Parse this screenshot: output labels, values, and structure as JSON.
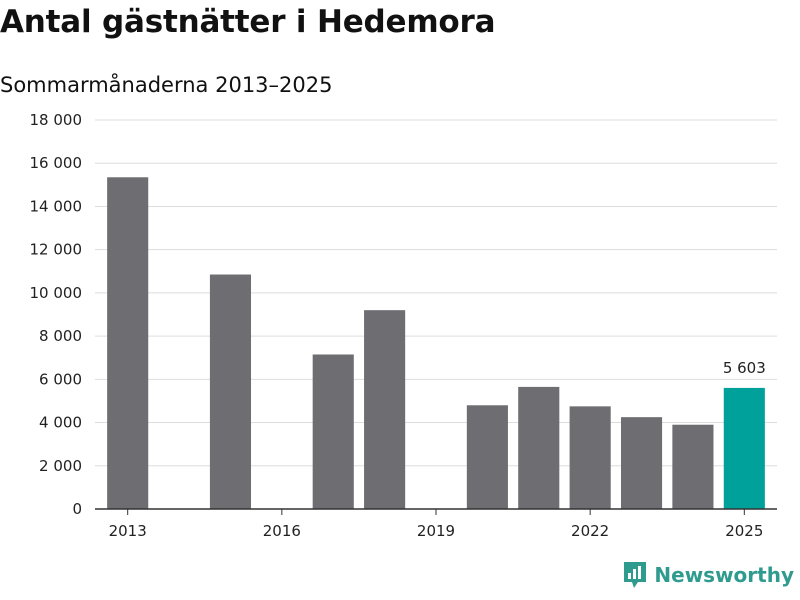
{
  "title": "Antal gästnätter i Hedemora",
  "subtitle": "Sommarmånaderna 2013–2025",
  "brand": {
    "name": "Newsworthy",
    "color": "#2f9b8f"
  },
  "colors": {
    "bar": "#6e6d72",
    "highlight": "#00a19a",
    "grid": "#dddddd",
    "axis": "#333333"
  },
  "chart_data": {
    "type": "bar",
    "title": "Antal gästnätter i Hedemora",
    "subtitle": "Sommarmånaderna 2013–2025",
    "categories": [
      2013,
      2014,
      2015,
      2016,
      2017,
      2018,
      2019,
      2020,
      2021,
      2022,
      2023,
      2024,
      2025
    ],
    "values": [
      15350,
      null,
      10850,
      null,
      7150,
      9200,
      null,
      4800,
      5650,
      4750,
      4250,
      3900,
      5603
    ],
    "x_tick_labels": [
      "2013",
      "2016",
      "2019",
      "2022",
      "2025"
    ],
    "y_ticks": [
      0,
      2000,
      4000,
      6000,
      8000,
      10000,
      12000,
      14000,
      16000,
      18000
    ],
    "y_tick_labels": [
      "0",
      "2 000",
      "4 000",
      "6 000",
      "8 000",
      "10 000",
      "12 000",
      "14 000",
      "16 000",
      "18 000"
    ],
    "ylim": [
      0,
      18000
    ],
    "highlight": {
      "category": 2025,
      "label": "5 603"
    },
    "grid": true,
    "xlabel": "",
    "ylabel": ""
  }
}
